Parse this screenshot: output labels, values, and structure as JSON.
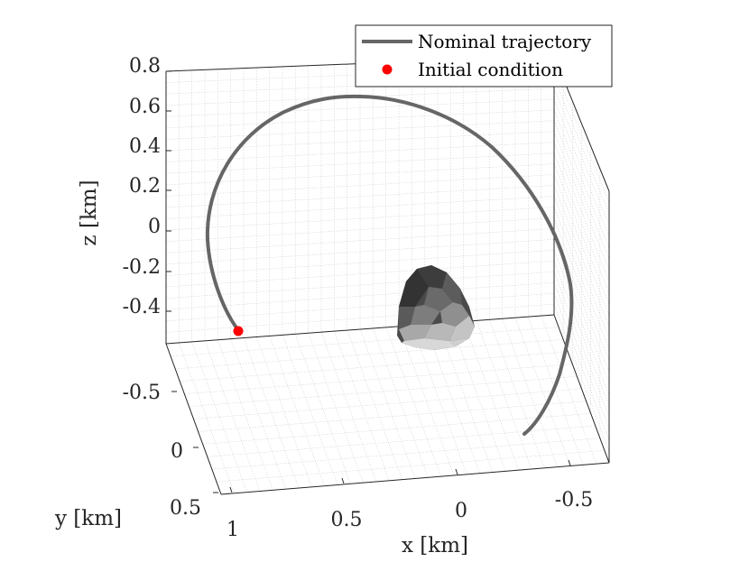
{
  "chart_data": {
    "type": "line3d",
    "grid": true,
    "legend_position": "top-right",
    "series": [
      {
        "name": "Nominal trajectory",
        "kind": "line",
        "color": "#666666"
      },
      {
        "name": "Initial condition",
        "kind": "marker",
        "color": "#ff0000",
        "points": [
          {
            "x": 1.0,
            "y": 0.5,
            "z": -0.5
          }
        ]
      }
    ],
    "z_axis": {
      "label": "z [km]",
      "ticks": [
        "0.8",
        "0.6",
        "0.4",
        "0.2",
        "0",
        "-0.2",
        "-0.4"
      ]
    },
    "y_axis": {
      "label": "y [km]",
      "ticks": [
        "-0.5",
        "0",
        "0.5"
      ]
    },
    "x_axis": {
      "label": "x [km]",
      "ticks": [
        "1",
        "0.5",
        "0",
        "-0.5"
      ]
    },
    "body": {
      "label": "",
      "color": "#888888"
    }
  }
}
